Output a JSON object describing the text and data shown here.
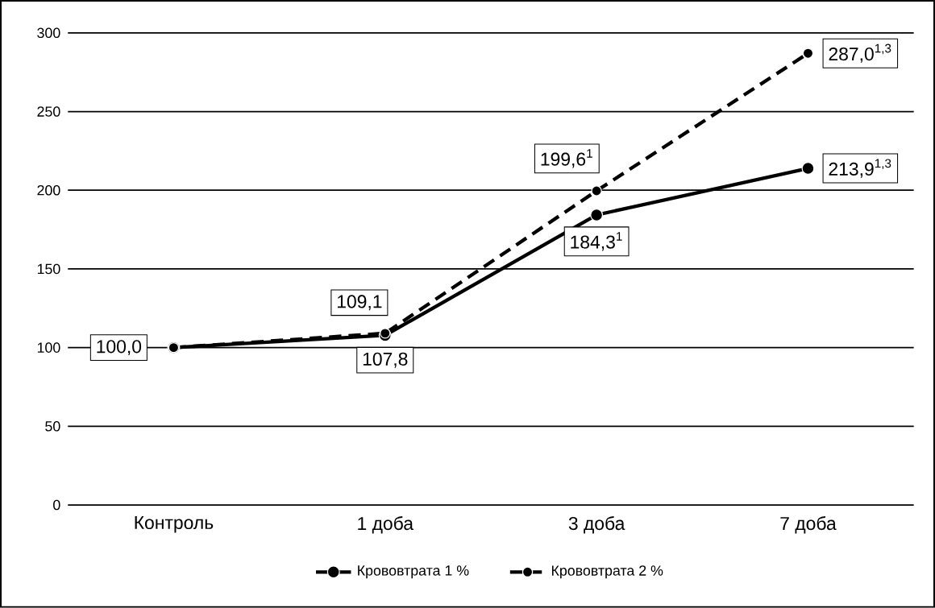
{
  "chart_data": {
    "type": "line",
    "categories": [
      "Контроль",
      "1 доба",
      "3 доба",
      "7 доба"
    ],
    "series": [
      {
        "name": "Крововтрата 1 %",
        "color": "#000000",
        "line_style": "solid",
        "values": [
          100.0,
          107.8,
          184.3,
          213.9
        ],
        "value_labels": [
          "100,0",
          "107,8",
          "184,3$^{1}$",
          "213,9$^{1,3}$"
        ]
      },
      {
        "name": "Крововтрата 2 %",
        "color": "#000000",
        "line_style": "dashed",
        "values": [
          100.0,
          109.1,
          199.6,
          287.0
        ],
        "value_labels": [
          null,
          "109,1",
          "199,6$^{1}$",
          "287,0$^{1,3}$"
        ]
      }
    ],
    "ylim": [
      0,
      300
    ],
    "yticks": [
      0,
      50,
      100,
      150,
      200,
      250,
      300
    ],
    "grid": "y",
    "legend": "bottom",
    "marker": "circle"
  }
}
